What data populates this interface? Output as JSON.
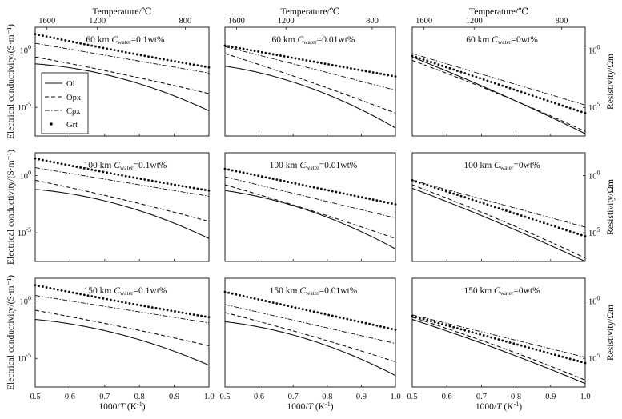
{
  "chart_data": {
    "type": "line",
    "title": "",
    "xlabel": "1000/T (K⁻¹)",
    "x_ticks": [
      "0.5",
      "0.6",
      "0.7",
      "0.8",
      "0.9",
      "1.0"
    ],
    "xlim": [
      0.5,
      1.0
    ],
    "top_xlabel": "Temperature/℃",
    "top_ticks": [
      "1600",
      "1200",
      "800"
    ],
    "top_tick_values": [
      1600,
      1200,
      800
    ],
    "ylabel": "Electrical conductivity/(S·m⁻¹)",
    "y_scale": "log10",
    "ylim_log10": [
      -7.5,
      2.0
    ],
    "y_ticks": [
      {
        "base": "10",
        "exp": "0",
        "value_log10": 0
      },
      {
        "base": "10",
        "exp": "-5",
        "value_log10": -5
      }
    ],
    "right_ylabel": "Resistivity/Ωm",
    "right_ticks": [
      {
        "base": "10",
        "exp": "0",
        "value_log10": 0
      },
      {
        "base": "10",
        "exp": "5",
        "value_log10": 5
      }
    ],
    "legend": {
      "position": "left",
      "entries": [
        {
          "name": "Ol",
          "style": "solid"
        },
        {
          "name": "Opx",
          "style": "dashed"
        },
        {
          "name": "Cpx",
          "style": "dashdot"
        },
        {
          "name": "Grt",
          "style": "dotted"
        }
      ]
    },
    "x": [
      0.5,
      1.0
    ],
    "rows": [
      {
        "depth": "60 km",
        "panels": [
          {
            "prefix": "60 km ",
            "var": "C",
            "sub": "water",
            "suffix": "=0.1wt%",
            "series": {
              "Ol": [
                -1.2,
                -5.3,
                3.0
              ],
              "Opx": [
                -0.6,
                -3.8,
                0.4
              ],
              "Cpx": [
                0.6,
                -2.0,
                0.0
              ],
              "Grt": [
                1.4,
                -1.5,
                -0.3
              ]
            }
          },
          {
            "prefix": "60 km ",
            "var": "C",
            "sub": "water",
            "suffix": "=0.01wt%",
            "series": {
              "Ol": [
                -1.4,
                -6.8,
                3.2
              ],
              "Opx": [
                -0.3,
                -5.5,
                0.5
              ],
              "Cpx": [
                0.3,
                -3.5,
                0.1
              ],
              "Grt": [
                0.4,
                -2.3,
                0.0
              ]
            }
          },
          {
            "prefix": "60 km ",
            "var": "C",
            "sub": "water",
            "suffix": "=0wt%",
            "series": {
              "Ol": [
                -0.6,
                -7.3,
                0.7
              ],
              "Opx": [
                -0.9,
                -7.1,
                0.7
              ],
              "Cpx": [
                -0.3,
                -4.8,
                0.0
              ],
              "Grt": [
                -0.5,
                -5.5,
                0.0
              ]
            }
          }
        ]
      },
      {
        "depth": "100 km",
        "panels": [
          {
            "prefix": "100 km ",
            "var": "C",
            "sub": "water",
            "suffix": "=0.1wt%",
            "series": {
              "Ol": [
                -1.2,
                -5.5,
                3.0
              ],
              "Opx": [
                -0.4,
                -4.0,
                0.5
              ],
              "Cpx": [
                0.7,
                -1.8,
                0.0
              ],
              "Grt": [
                1.5,
                -1.3,
                -0.3
              ]
            }
          },
          {
            "prefix": "100 km ",
            "var": "C",
            "sub": "water",
            "suffix": "=0.01wt%",
            "series": {
              "Ol": [
                -1.3,
                -6.4,
                3.0
              ],
              "Opx": [
                -0.8,
                -5.5,
                0.5
              ],
              "Cpx": [
                -0.1,
                -3.7,
                0.0
              ],
              "Grt": [
                0.6,
                -2.5,
                0.0
              ]
            }
          },
          {
            "prefix": "100 km ",
            "var": "C",
            "sub": "water",
            "suffix": "=0wt%",
            "series": {
              "Ol": [
                -1.1,
                -7.5,
                0.7
              ],
              "Opx": [
                -0.8,
                -7.2,
                0.7
              ],
              "Cpx": [
                -0.4,
                -4.5,
                0.0
              ],
              "Grt": [
                -0.4,
                -5.3,
                0.0
              ]
            }
          }
        ]
      },
      {
        "depth": "150 km",
        "panels": [
          {
            "prefix": "150 km ",
            "var": "C",
            "sub": "water",
            "suffix": "=0.1wt%",
            "series": {
              "Ol": [
                -1.6,
                -5.6,
                2.6
              ],
              "Opx": [
                -0.8,
                -3.9,
                0.4
              ],
              "Cpx": [
                0.5,
                -1.9,
                0.0
              ],
              "Grt": [
                1.4,
                -1.4,
                -0.3
              ]
            }
          },
          {
            "prefix": "150 km ",
            "var": "C",
            "sub": "water",
            "suffix": "=0.01wt%",
            "series": {
              "Ol": [
                -1.8,
                -6.5,
                3.0
              ],
              "Opx": [
                -1.0,
                -5.3,
                0.5
              ],
              "Cpx": [
                -0.3,
                -3.7,
                0.0
              ],
              "Grt": [
                0.8,
                -2.5,
                0.0
              ]
            }
          },
          {
            "prefix": "150 km ",
            "var": "C",
            "sub": "water",
            "suffix": "=0wt%",
            "series": {
              "Ol": [
                -1.6,
                -7.2,
                0.7
              ],
              "Opx": [
                -1.4,
                -6.9,
                0.7
              ],
              "Cpx": [
                -1.2,
                -4.9,
                0.0
              ],
              "Grt": [
                -1.3,
                -5.4,
                0.0
              ]
            }
          }
        ]
      }
    ]
  }
}
